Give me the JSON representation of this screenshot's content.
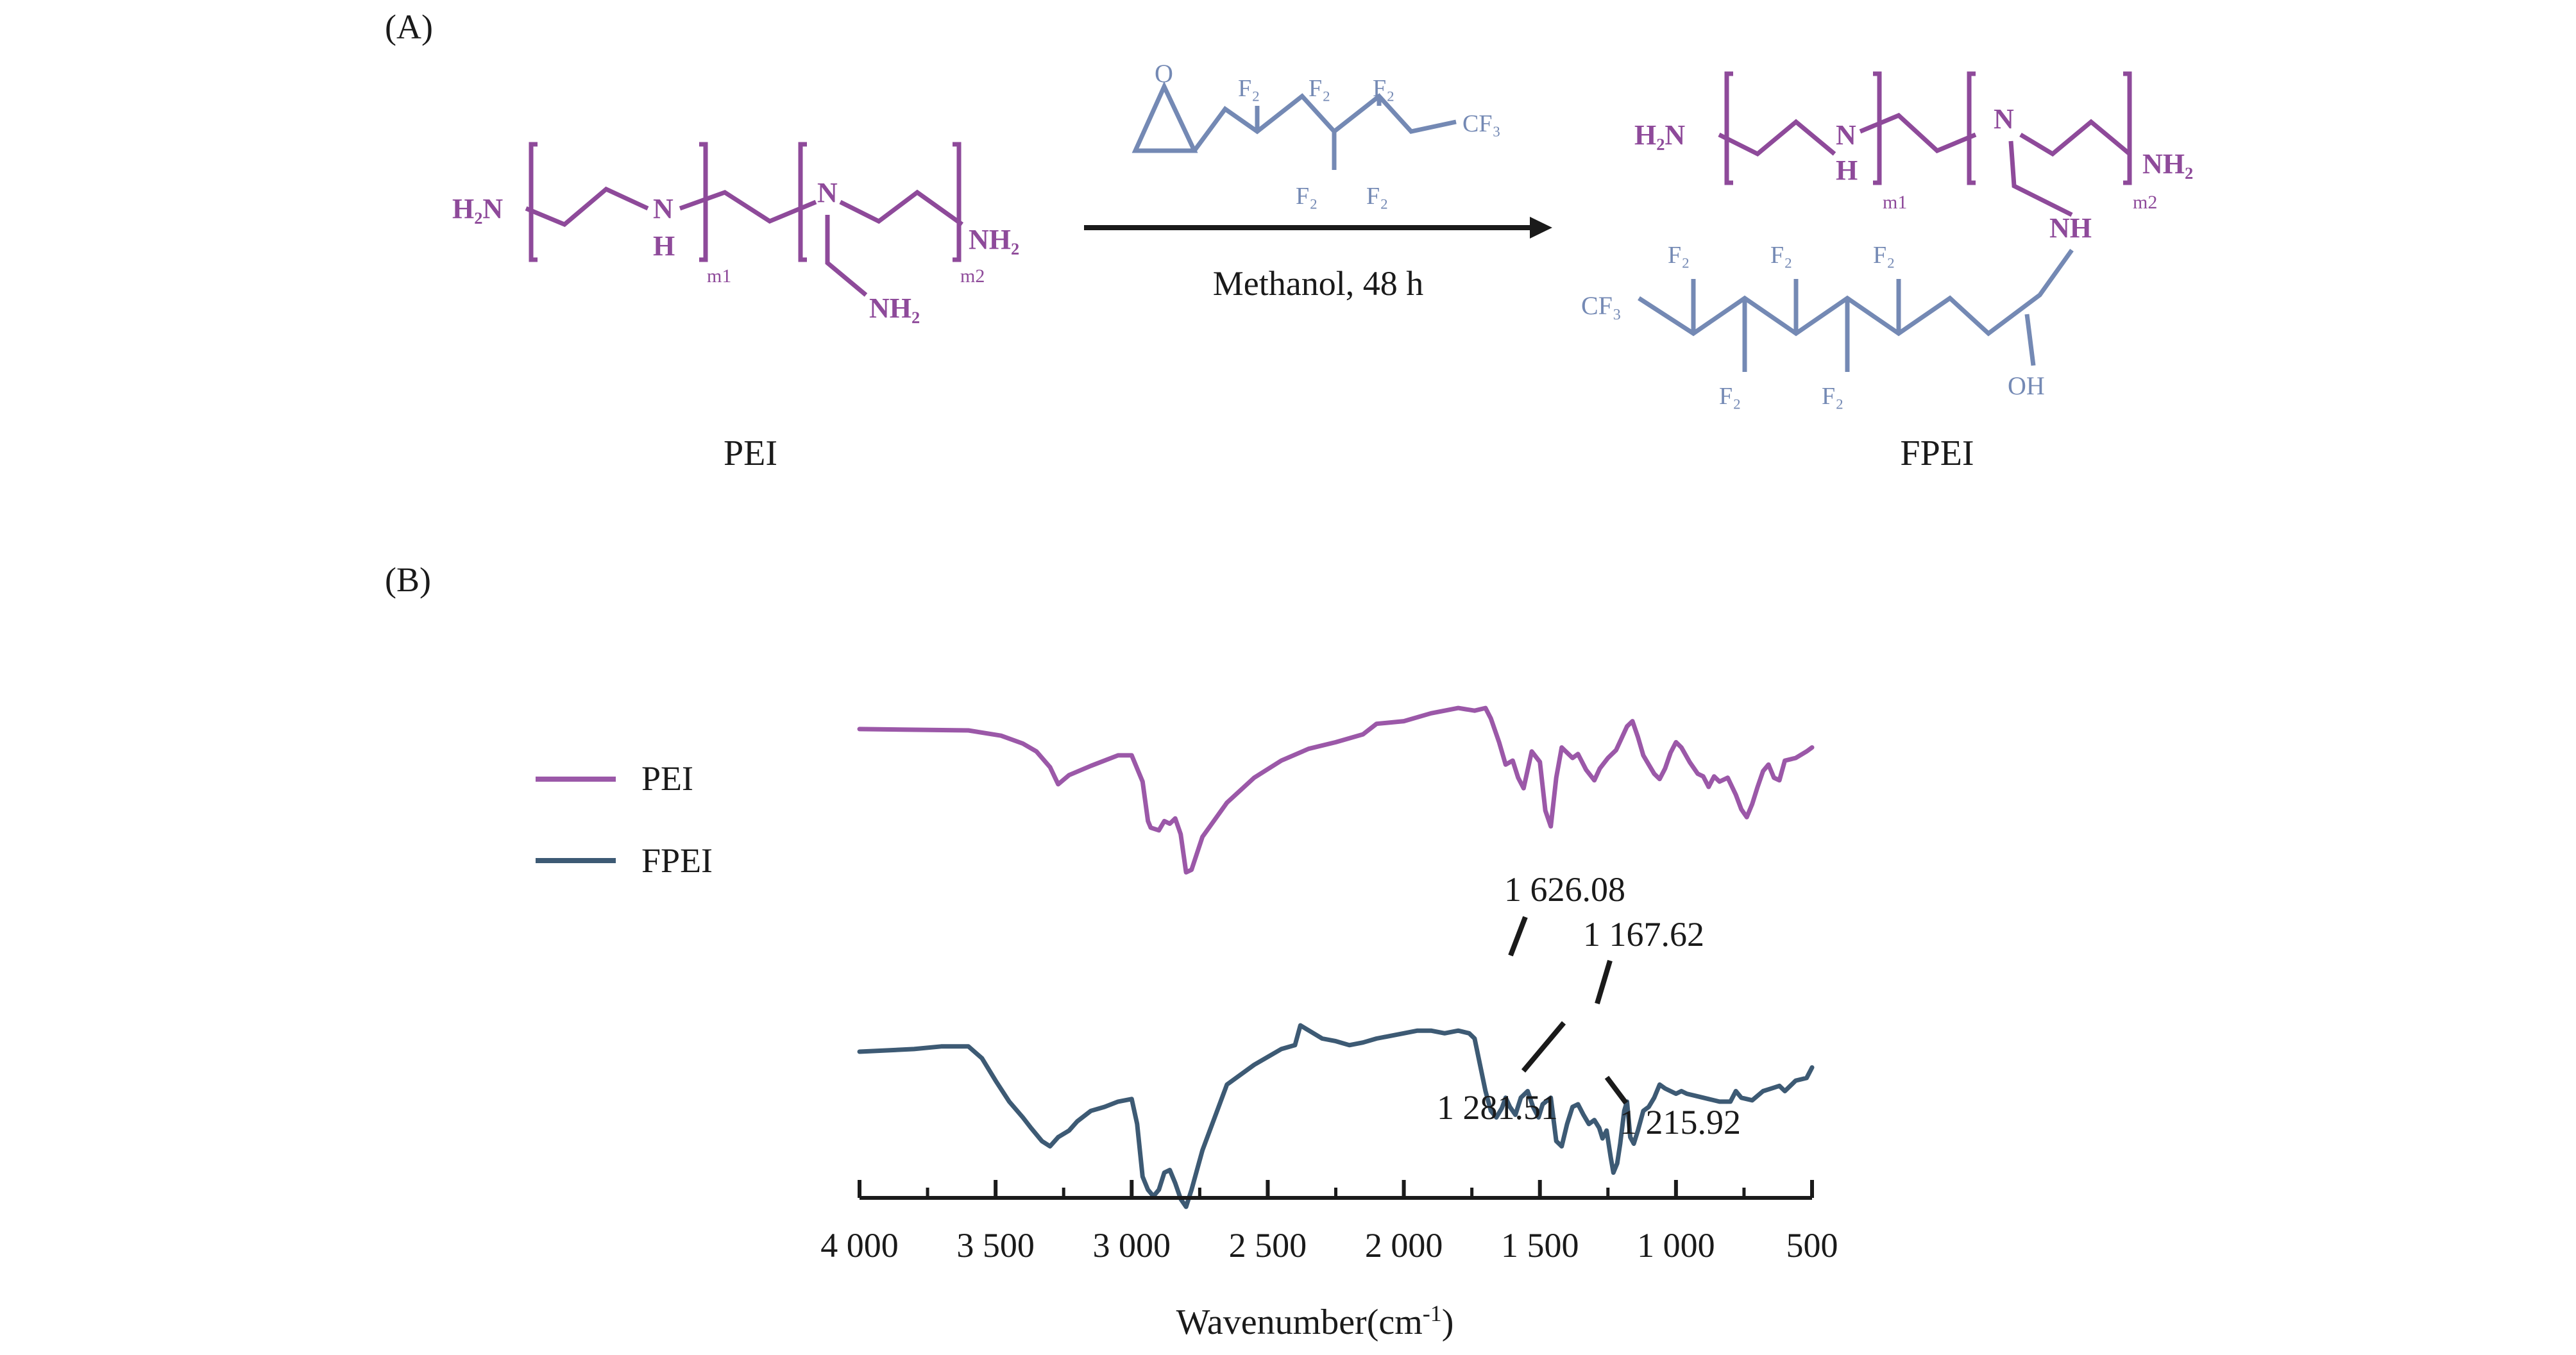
{
  "panels": {
    "a_label": "(A)",
    "b_label": "(B)"
  },
  "reaction": {
    "reactant_name": "PEI",
    "product_name": "FPEI",
    "condition": "Methanol, 48 h",
    "colors": {
      "pei": "#8e4a9a",
      "fluoro": "#7489b4",
      "arrow": "#1a1a1a"
    },
    "pei": {
      "h2n": "H₂N",
      "n": "N",
      "h": "H",
      "nh2_end": "NH₂",
      "nh2_side": "NH₂",
      "m1": "m1",
      "m2": "m2"
    },
    "reagent": {
      "o": "O",
      "f2_1": "F₂",
      "f2_2": "F₂",
      "f2_3": "F₂",
      "f2_4": "F₂",
      "f2_5": "F₂",
      "cf3": "CF₃"
    },
    "fpei": {
      "h2n": "H₂N",
      "n": "N",
      "h": "H",
      "nh2_end": "NH₂",
      "m1": "m1",
      "m2": "m2",
      "n_branch": "N",
      "nh": "NH",
      "cf3": "CF₃",
      "f2_1": "F₂",
      "f2_2": "F₂",
      "f2_3": "F₂",
      "f2_4": "F₂",
      "f2_5": "F₂",
      "oh": "OH"
    }
  },
  "chart_data": {
    "type": "line",
    "xlabel": "Wavenumber(cm",
    "xlabel_sup": "-1",
    "xlabel_close": ")",
    "x_reversed": true,
    "xlim": [
      4000,
      500
    ],
    "xticks": [
      4000,
      3500,
      3000,
      2500,
      2000,
      1500,
      1000,
      500
    ],
    "xtick_labels": [
      "4 000",
      "3 500",
      "3 000",
      "2 500",
      "2 000",
      "1 500",
      "1 000",
      "500"
    ],
    "legend_position": "left",
    "series": [
      {
        "name": "PEI",
        "color": "#9b58a8",
        "x": [
          4000,
          3600,
          3480,
          3400,
          3350,
          3300,
          3270,
          3230,
          3150,
          3050,
          3000,
          2960,
          2940,
          2930,
          2900,
          2880,
          2860,
          2840,
          2820,
          2800,
          2780,
          2740,
          2650,
          2550,
          2450,
          2350,
          2250,
          2150,
          2100,
          2000,
          1900,
          1800,
          1740,
          1700,
          1680,
          1650,
          1626,
          1600,
          1580,
          1560,
          1530,
          1500,
          1480,
          1460,
          1440,
          1420,
          1400,
          1380,
          1360,
          1330,
          1300,
          1280,
          1250,
          1220,
          1200,
          1180,
          1160,
          1140,
          1120,
          1100,
          1080,
          1060,
          1040,
          1020,
          1000,
          980,
          950,
          920,
          900,
          880,
          860,
          840,
          810,
          780,
          760,
          740,
          720,
          700,
          680,
          660,
          640,
          620,
          600,
          560,
          520,
          500
        ],
        "y": [
          0.18,
          0.19,
          0.23,
          0.29,
          0.35,
          0.47,
          0.6,
          0.53,
          0.46,
          0.38,
          0.38,
          0.58,
          0.88,
          0.93,
          0.95,
          0.88,
          0.9,
          0.86,
          0.98,
          1.27,
          1.25,
          1.0,
          0.74,
          0.55,
          0.42,
          0.33,
          0.28,
          0.22,
          0.14,
          0.12,
          0.06,
          0.02,
          0.04,
          0.02,
          0.1,
          0.28,
          0.45,
          0.42,
          0.55,
          0.63,
          0.35,
          0.43,
          0.8,
          0.92,
          0.55,
          0.32,
          0.36,
          0.4,
          0.37,
          0.49,
          0.57,
          0.48,
          0.4,
          0.34,
          0.25,
          0.16,
          0.12,
          0.24,
          0.38,
          0.45,
          0.52,
          0.56,
          0.48,
          0.36,
          0.28,
          0.32,
          0.43,
          0.52,
          0.54,
          0.62,
          0.54,
          0.58,
          0.55,
          0.68,
          0.79,
          0.85,
          0.75,
          0.62,
          0.5,
          0.45,
          0.55,
          0.57,
          0.42,
          0.4,
          0.35,
          0.32
        ]
      },
      {
        "name": "FPEI",
        "color": "#3d5a74",
        "x": [
          4000,
          3800,
          3700,
          3600,
          3550,
          3500,
          3450,
          3400,
          3370,
          3330,
          3300,
          3270,
          3230,
          3200,
          3150,
          3100,
          3050,
          3000,
          2980,
          2960,
          2940,
          2920,
          2900,
          2880,
          2860,
          2840,
          2820,
          2800,
          2780,
          2740,
          2650,
          2550,
          2450,
          2400,
          2380,
          2340,
          2300,
          2250,
          2200,
          2150,
          2100,
          2050,
          2000,
          1950,
          1900,
          1850,
          1800,
          1760,
          1740,
          1720,
          1700,
          1680,
          1660,
          1640,
          1626,
          1610,
          1590,
          1570,
          1545,
          1525,
          1505,
          1490,
          1460,
          1440,
          1420,
          1400,
          1380,
          1360,
          1340,
          1320,
          1300,
          1282,
          1270,
          1255,
          1240,
          1230,
          1216,
          1205,
          1190,
          1180,
          1168,
          1155,
          1140,
          1120,
          1100,
          1080,
          1060,
          1040,
          1020,
          1000,
          980,
          960,
          920,
          880,
          840,
          800,
          780,
          760,
          720,
          680,
          650,
          620,
          600,
          560,
          520,
          500
        ],
        "y": [
          1.0,
          0.98,
          0.96,
          0.96,
          1.05,
          1.22,
          1.38,
          1.5,
          1.58,
          1.68,
          1.72,
          1.65,
          1.6,
          1.53,
          1.45,
          1.42,
          1.38,
          1.36,
          1.55,
          1.95,
          2.05,
          2.1,
          2.05,
          1.92,
          1.9,
          2.0,
          2.12,
          2.18,
          2.05,
          1.75,
          1.25,
          1.1,
          0.98,
          0.95,
          0.8,
          0.85,
          0.9,
          0.92,
          0.95,
          0.93,
          0.9,
          0.88,
          0.86,
          0.84,
          0.84,
          0.86,
          0.84,
          0.86,
          0.9,
          1.1,
          1.3,
          1.45,
          1.5,
          1.43,
          1.35,
          1.42,
          1.48,
          1.35,
          1.3,
          1.42,
          1.5,
          1.4,
          1.35,
          1.68,
          1.72,
          1.55,
          1.42,
          1.4,
          1.48,
          1.55,
          1.52,
          1.58,
          1.66,
          1.6,
          1.8,
          1.92,
          1.85,
          1.7,
          1.45,
          1.38,
          1.65,
          1.7,
          1.6,
          1.45,
          1.42,
          1.35,
          1.25,
          1.28,
          1.3,
          1.32,
          1.3,
          1.32,
          1.34,
          1.36,
          1.38,
          1.38,
          1.3,
          1.35,
          1.37,
          1.3,
          1.28,
          1.26,
          1.3,
          1.22,
          1.2,
          1.12
        ]
      }
    ],
    "annotations": [
      {
        "text": "1 626.08",
        "target_x": 1626
      },
      {
        "text": "1 167.62",
        "target_x": 1168
      },
      {
        "text": "1 281.51",
        "target_x": 1282
      },
      {
        "text": "1 215.92",
        "target_x": 1216
      }
    ]
  }
}
